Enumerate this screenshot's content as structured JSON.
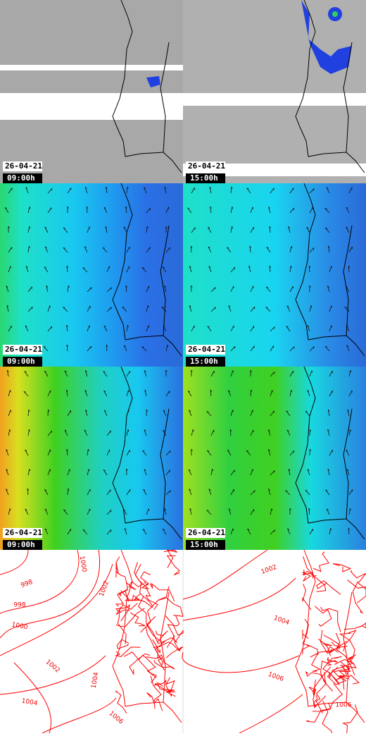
{
  "panels": [
    {
      "date": "26-04-21",
      "time": "09:00h"
    },
    {
      "date": "26-04-21",
      "time": "15:00h"
    },
    {
      "date": "26-04-21",
      "time": "09:00h"
    },
    {
      "date": "26-04-21",
      "time": "15:00h"
    },
    {
      "date": "26-04-21",
      "time": "09:00h"
    },
    {
      "date": "26-04-21",
      "time": "15:00h"
    }
  ],
  "isobar_labels": {
    "left": [
      1000,
      998,
      1002,
      998,
      1000,
      1002,
      1004,
      1004,
      1006
    ],
    "right": [
      1002,
      1004,
      1006,
      1006
    ]
  }
}
